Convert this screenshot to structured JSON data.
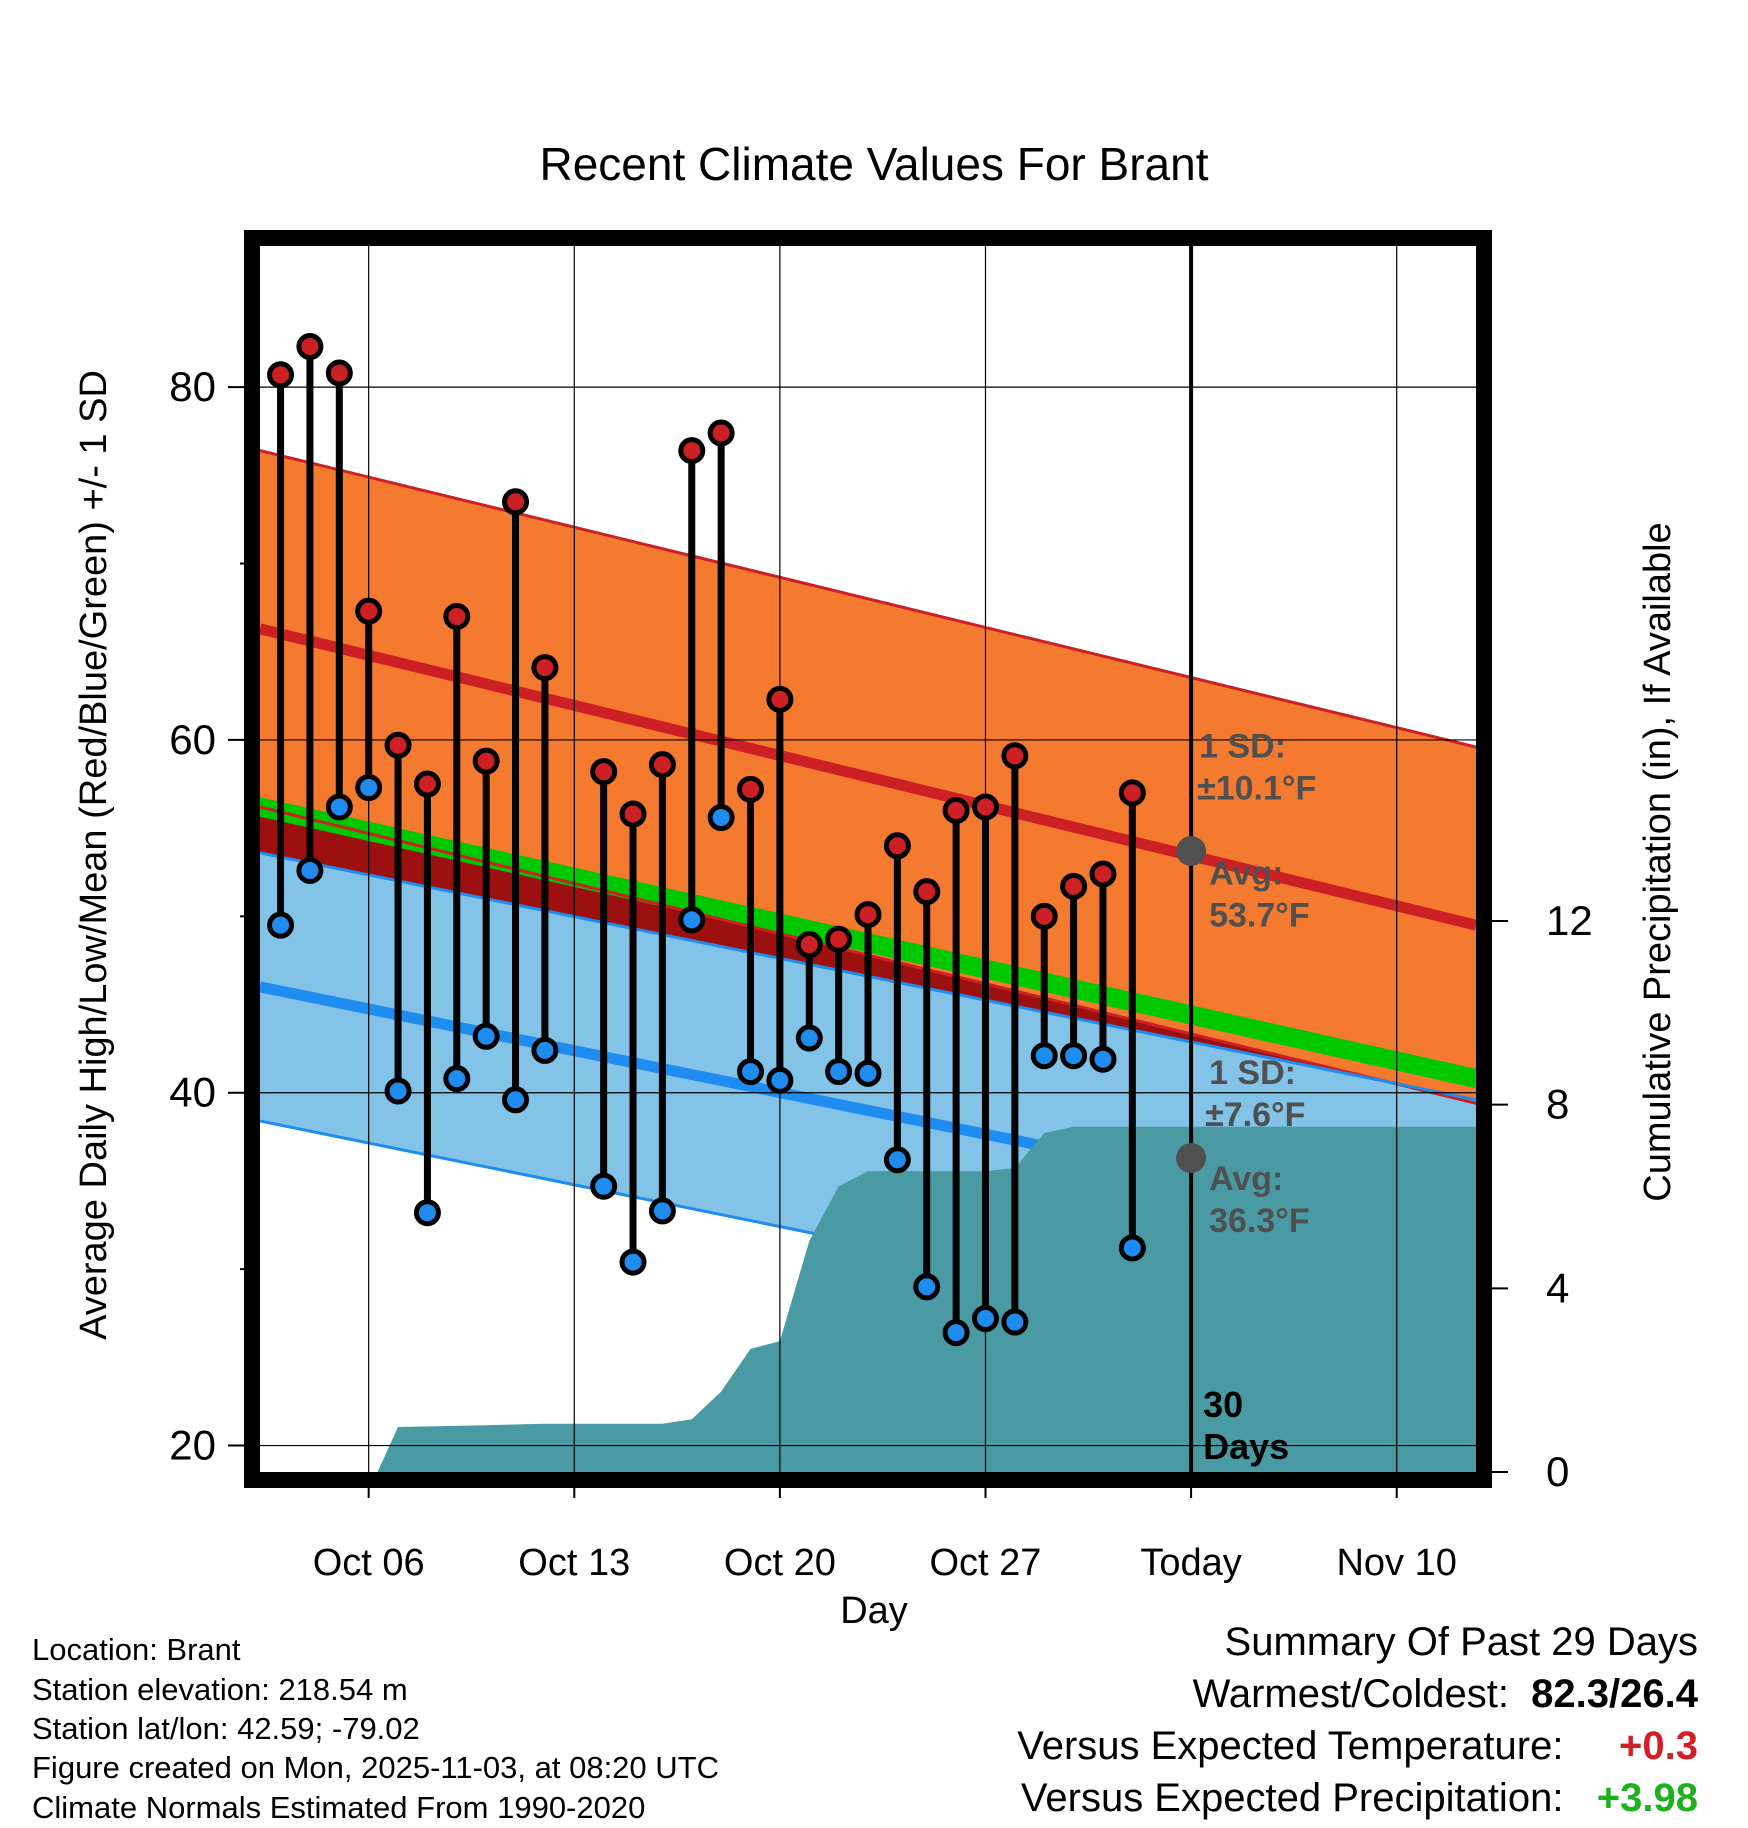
{
  "chart_data": {
    "type": "line",
    "title": "Recent Climate Values For Brant",
    "xlabel": "Day",
    "ylabel": "Average Daily High/Low/Mean (Red/Blue/Green) +/- 1 SD",
    "y2label": "Cumulative Precipitation (in), If Available",
    "ylim": [
      18.5,
      88
    ],
    "y2lim": [
      0,
      26.7
    ],
    "xlim": [
      2.3,
      43.7
    ],
    "x_ticks": [
      {
        "x": 6,
        "label": "Oct 06"
      },
      {
        "x": 13,
        "label": "Oct 13"
      },
      {
        "x": 20,
        "label": "Oct 20"
      },
      {
        "x": 27,
        "label": "Oct 27"
      },
      {
        "x": 34,
        "label": "Today"
      },
      {
        "x": 41,
        "label": "Nov 10"
      }
    ],
    "y_ticks": [
      20,
      40,
      60,
      80
    ],
    "y2_ticks": [
      0,
      4,
      8,
      12
    ],
    "today_x": 34,
    "normals": {
      "high_mean": {
        "start": 66.3,
        "end": 49.5
      },
      "high_sd": 10.1,
      "low_mean": {
        "start": 46.0,
        "end": 32.0
      },
      "low_sd": 7.6,
      "mean": {
        "start": 56.2,
        "end": 40.8
      }
    },
    "series": [
      {
        "name": "Daily High",
        "x": [
          3,
          4,
          5,
          6,
          7,
          8,
          9,
          10,
          11,
          12,
          14,
          15,
          16,
          17,
          18,
          19,
          20,
          21,
          22,
          23,
          24,
          25,
          26,
          27,
          28,
          29,
          30,
          31,
          32,
          33
        ],
        "values": [
          80.7,
          82.3,
          80.8,
          67.3,
          59.7,
          57.5,
          67.0,
          58.8,
          73.5,
          64.1,
          58.2,
          55.8,
          58.6,
          76.4,
          77.4,
          57.2,
          62.3,
          48.4,
          48.7,
          50.1,
          54.0,
          51.4,
          56.0,
          56.2,
          59.1,
          50.0,
          51.7,
          52.4,
          57.0,
          null
        ]
      },
      {
        "name": "Daily Low",
        "x": [
          3,
          4,
          5,
          6,
          7,
          8,
          9,
          10,
          11,
          12,
          14,
          15,
          16,
          17,
          18,
          19,
          20,
          21,
          22,
          23,
          24,
          25,
          26,
          27,
          28,
          29,
          30,
          31,
          32,
          33
        ],
        "values": [
          49.5,
          52.6,
          56.2,
          57.3,
          40.1,
          33.2,
          40.8,
          43.2,
          39.6,
          42.4,
          34.7,
          30.4,
          33.3,
          49.8,
          55.6,
          41.2,
          40.7,
          43.1,
          41.2,
          41.1,
          36.2,
          29.0,
          26.4,
          27.2,
          27.0,
          42.1,
          42.1,
          41.9,
          31.2,
          null
        ]
      },
      {
        "name": "Cumulative Precipitation",
        "x": [
          3,
          5,
          6,
          6.3,
          7,
          10,
          12,
          14,
          16,
          17,
          18,
          19,
          20,
          21,
          22,
          23,
          24,
          25,
          26,
          27,
          28,
          29,
          30,
          31,
          32,
          33,
          34,
          35,
          36,
          37,
          38,
          39,
          40,
          41,
          42,
          43,
          43.7
        ],
        "values": [
          0,
          0,
          0,
          0,
          0.98,
          1.02,
          1.05,
          1.05,
          1.05,
          1.15,
          1.75,
          2.68,
          2.85,
          5.03,
          6.22,
          6.55,
          6.55,
          6.55,
          6.55,
          6.55,
          6.62,
          7.38,
          7.52,
          7.52,
          7.52,
          7.52,
          7.52,
          7.52,
          7.52,
          7.52,
          7.52,
          7.52,
          7.52,
          7.52,
          7.52,
          7.52,
          7.52
        ]
      }
    ],
    "annotations": {
      "high_sd_label": "1 SD:",
      "high_sd_value": "±10.1°F",
      "high_avg_label": "Avg:",
      "high_avg_value": "53.7°F",
      "high_avg": 53.7,
      "low_sd_label": "1 SD:",
      "low_sd_value": "±7.6°F",
      "low_avg_label": "Avg:",
      "low_avg_value": "36.3°F",
      "low_avg": 36.3,
      "days_line1": "30",
      "days_line2": "Days"
    },
    "colors": {
      "high_band": "#f47a30",
      "high_line": "#cd2025",
      "low_band": "#83c3e8",
      "low_line": "#1f8cf0",
      "mean_band": "#00c800",
      "overlap": "#9d1010",
      "precip": "#4a9aa4",
      "high_dot": "#cd2025",
      "low_dot": "#1f8cf0",
      "label_gray": "#505050"
    }
  },
  "footer": {
    "location": "Location: Brant",
    "elevation": "Station elevation: 218.54 m",
    "latlon": "Station lat/lon: 42.59; -79.02",
    "created": "Figure created on Mon, 2025-11-03, at 08:20 UTC",
    "normals": "Climate Normals Estimated From 1990-2020"
  },
  "summary": {
    "title": "Summary Of Past 29 Days",
    "warmest_label": "Warmest/Coldest:",
    "warmest_value": "82.3/26.4",
    "temp_label": "Versus Expected Temperature:",
    "temp_value": "+0.3",
    "temp_color": "#d21f26",
    "precip_label": "Versus Expected Precipitation:",
    "precip_value": "+3.98",
    "precip_color": "#1db21d"
  }
}
